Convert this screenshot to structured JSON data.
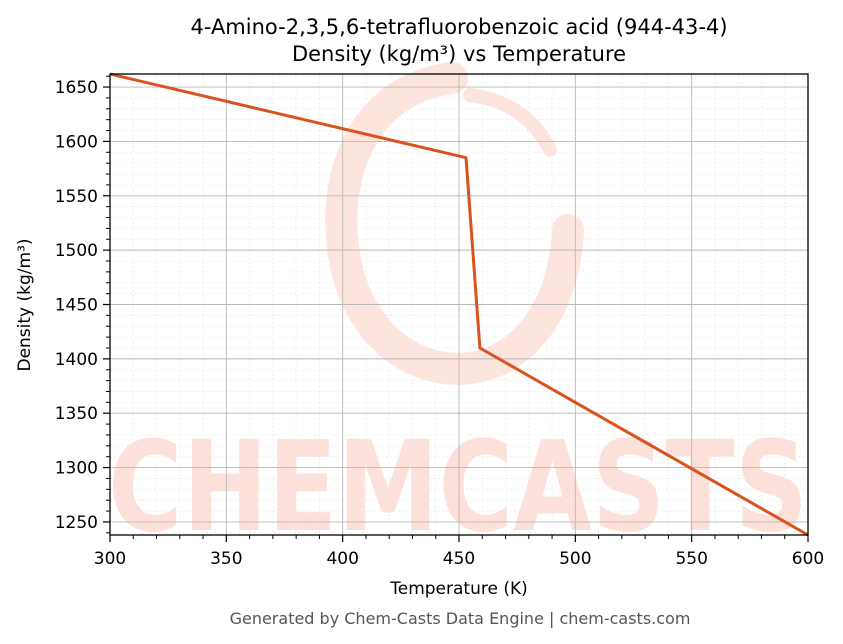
{
  "chart_data": {
    "type": "line",
    "title": "4-Amino-2,3,5,6-tetrafluorobenzoic acid (944-43-4)",
    "subtitle": "Density (kg/m³) vs Temperature",
    "xlabel": "Temperature (K)",
    "ylabel": "Density (kg/m³)",
    "xlim": [
      300,
      600
    ],
    "ylim": [
      1238,
      1662
    ],
    "xticks": [
      300,
      350,
      400,
      450,
      500,
      550,
      600
    ],
    "yticks": [
      1250,
      1300,
      1350,
      1400,
      1450,
      1500,
      1550,
      1600,
      1650
    ],
    "grid": true,
    "series": [
      {
        "color": "#d9531e",
        "x": [
          300,
          453,
          459,
          600
        ],
        "y": [
          1662,
          1585,
          1410,
          1238
        ]
      }
    ]
  },
  "watermark": {
    "text": "CHEMCASTS",
    "color": "#fde0d9"
  },
  "footer": "Generated by Chem-Casts Data Engine | chem-casts.com"
}
